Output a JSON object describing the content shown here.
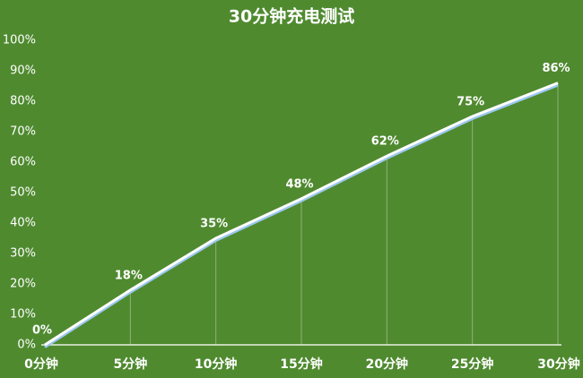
{
  "chart_data": {
    "type": "line",
    "title": "30分钟充电测试",
    "categories": [
      "0分钟",
      "5分钟",
      "10分钟",
      "15分钟",
      "20分钟",
      "25分钟",
      "30分钟"
    ],
    "values": [
      0,
      18,
      35,
      48,
      62,
      75,
      86
    ],
    "value_labels": [
      "0%",
      "18%",
      "35%",
      "48%",
      "62%",
      "75%",
      "86%"
    ],
    "color": "#ffffff",
    "ylim": [
      0,
      100
    ],
    "yticks": [
      {
        "value": 0,
        "label": "0%"
      },
      {
        "value": 10,
        "label": "10%"
      },
      {
        "value": 20,
        "label": "20%"
      },
      {
        "value": 30,
        "label": "30%"
      },
      {
        "value": 40,
        "label": "40%"
      },
      {
        "value": 50,
        "label": "50%"
      },
      {
        "value": 60,
        "label": "60%"
      },
      {
        "value": 70,
        "label": "70%"
      },
      {
        "value": 80,
        "label": "80%"
      },
      {
        "value": 90,
        "label": "90%"
      },
      {
        "value": 100,
        "label": "100%"
      }
    ]
  }
}
